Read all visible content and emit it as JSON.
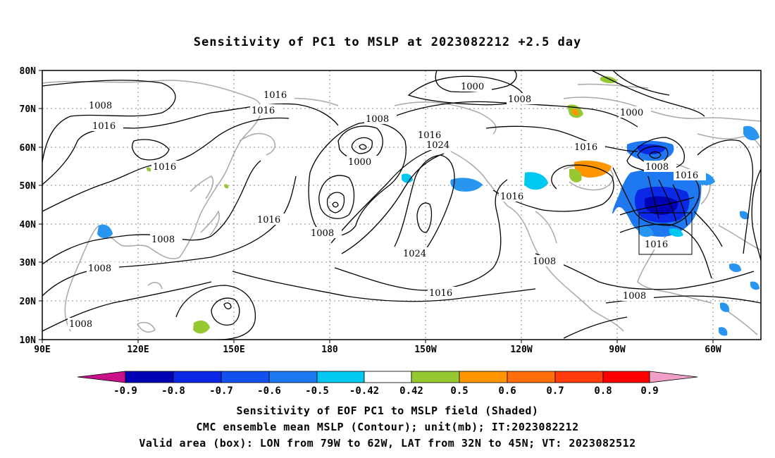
{
  "title": "Sensitivity of PC1 to MSLP at 2023082212 +2.5 day",
  "map": {
    "lat_labels": [
      "80N",
      "70N",
      "60N",
      "50N",
      "40N",
      "30N",
      "20N",
      "10N"
    ],
    "lon_labels": [
      "90E",
      "120E",
      "150E",
      "180",
      "150W",
      "120W",
      "90W",
      "60W"
    ],
    "valid_box": {
      "lon_from": "79W",
      "lon_to": "62W",
      "lat_from": "32N",
      "lat_to": "45N"
    },
    "contour_labels": [
      {
        "id": "c1",
        "text": "1016"
      },
      {
        "id": "c2",
        "text": "1016"
      },
      {
        "id": "c3",
        "text": "1008"
      },
      {
        "id": "c4",
        "text": "1016"
      },
      {
        "id": "c5",
        "text": "1016"
      },
      {
        "id": "c6",
        "text": "1008"
      },
      {
        "id": "c7",
        "text": "1000"
      },
      {
        "id": "c8",
        "text": "1016"
      },
      {
        "id": "c9",
        "text": "1024"
      },
      {
        "id": "c10",
        "text": "1000"
      },
      {
        "id": "c11",
        "text": "1008"
      },
      {
        "id": "c12",
        "text": "1000"
      },
      {
        "id": "c13",
        "text": "1016"
      },
      {
        "id": "c14",
        "text": "1008"
      },
      {
        "id": "c15",
        "text": "1016"
      },
      {
        "id": "c16",
        "text": "1016"
      },
      {
        "id": "c17",
        "text": "1008"
      },
      {
        "id": "c18",
        "text": "1024"
      },
      {
        "id": "c19",
        "text": "1016"
      },
      {
        "id": "c20",
        "text": "1016"
      },
      {
        "id": "c21",
        "text": "1008"
      },
      {
        "id": "c22",
        "text": "1008"
      },
      {
        "id": "c23",
        "text": "1008"
      },
      {
        "id": "c24",
        "text": "1008"
      },
      {
        "id": "c25",
        "text": "1016"
      }
    ],
    "colors": {
      "contour": "#000000",
      "coastline": "#a8a8a8",
      "grid": "#888888"
    }
  },
  "colorbar": {
    "labels": [
      "-0.9",
      "-0.8",
      "-0.7",
      "-0.6",
      "-0.5",
      "-0.42",
      "0.42",
      "0.5",
      "0.6",
      "0.7",
      "0.8",
      "0.9"
    ],
    "colors": [
      "#c8108a",
      "#0000b4",
      "#0a28e6",
      "#1450f0",
      "#1e78f0",
      "#2896f0",
      "#00c8f0",
      "#ffffff",
      "#96c832",
      "#ff9600",
      "#ff6e0a",
      "#ff3c0a",
      "#ff1e0a",
      "#ff0000",
      "#f0a0c8"
    ]
  },
  "footer": {
    "line1": "Sensitivity of EOF PC1 to MSLP field (Shaded)",
    "line2": "CMC ensemble mean MSLP (Contour); unit(mb); IT:2023082212",
    "line3": "Valid area (box): LON from 79W to 62W, LAT from 32N to 45N; VT: 2023082512"
  }
}
